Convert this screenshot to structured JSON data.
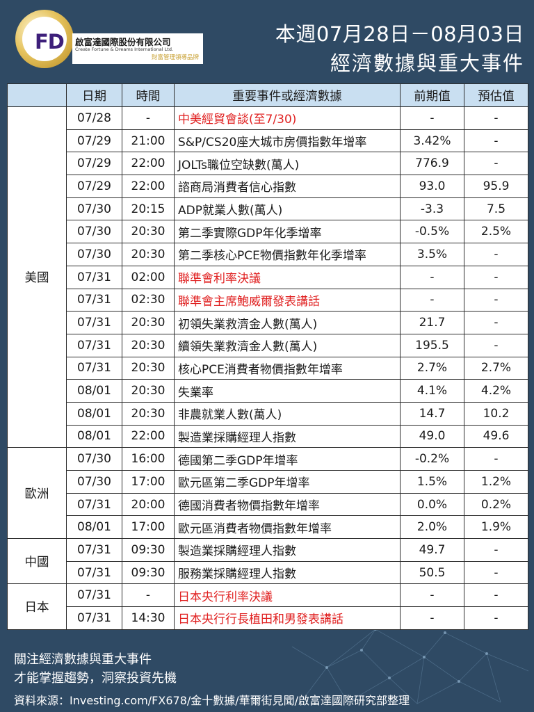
{
  "header": {
    "logo_text": "FD",
    "company_cn": "啟富達國際股份有限公司",
    "company_en": "Create Fortune & Dreams International Ltd.",
    "company_tag": "財富管理領導品牌",
    "title_line1": "本週07月28日－08月03日",
    "title_line2": "經濟數據與重大事件"
  },
  "table": {
    "headers": [
      "",
      "日期",
      "時間",
      "重要事件或經濟數據",
      "前期值",
      "預估值"
    ],
    "regions": [
      {
        "name": "美國",
        "rows": [
          {
            "date": "07/28",
            "time": "-",
            "event": "中美經貿會談(至7/30)",
            "prev": "-",
            "est": "-",
            "highlight": true
          },
          {
            "date": "07/29",
            "time": "21:00",
            "event": "S&P/CS20座大城市房價指數年增率",
            "prev": "3.42%",
            "est": "-",
            "highlight": false
          },
          {
            "date": "07/29",
            "time": "22:00",
            "event": "JOLTs職位空缺數(萬人)",
            "prev": "776.9",
            "est": "-",
            "highlight": false
          },
          {
            "date": "07/29",
            "time": "22:00",
            "event": "諮商局消費者信心指數",
            "prev": "93.0",
            "est": "95.9",
            "highlight": false
          },
          {
            "date": "07/30",
            "time": "20:15",
            "event": "ADP就業人數(萬人)",
            "prev": "-3.3",
            "est": "7.5",
            "highlight": false
          },
          {
            "date": "07/30",
            "time": "20:30",
            "event": "第二季實際GDP年化季增率",
            "prev": "-0.5%",
            "est": "2.5%",
            "highlight": false
          },
          {
            "date": "07/30",
            "time": "20:30",
            "event": "第二季核心PCE物價指數年化季增率",
            "prev": "3.5%",
            "est": "-",
            "highlight": false
          },
          {
            "date": "07/31",
            "time": "02:00",
            "event": "聯準會利率決議",
            "prev": "-",
            "est": "-",
            "highlight": true
          },
          {
            "date": "07/31",
            "time": "02:30",
            "event": "聯準會主席鮑威爾發表講話",
            "prev": "-",
            "est": "-",
            "highlight": true
          },
          {
            "date": "07/31",
            "time": "20:30",
            "event": "初領失業救濟金人數(萬人)",
            "prev": "21.7",
            "est": "-",
            "highlight": false
          },
          {
            "date": "07/31",
            "time": "20:30",
            "event": "續領失業救濟金人數(萬人)",
            "prev": "195.5",
            "est": "-",
            "highlight": false
          },
          {
            "date": "07/31",
            "time": "20:30",
            "event": "核心PCE消費者物價指數年增率",
            "prev": "2.7%",
            "est": "2.7%",
            "highlight": false
          },
          {
            "date": "08/01",
            "time": "20:30",
            "event": "失業率",
            "prev": "4.1%",
            "est": "4.2%",
            "highlight": false
          },
          {
            "date": "08/01",
            "time": "20:30",
            "event": "非農就業人數(萬人)",
            "prev": "14.7",
            "est": "10.2",
            "highlight": false
          },
          {
            "date": "08/01",
            "time": "22:00",
            "event": "製造業採購經理人指數",
            "prev": "49.0",
            "est": "49.6",
            "highlight": false
          }
        ]
      },
      {
        "name": "歐洲",
        "rows": [
          {
            "date": "07/30",
            "time": "16:00",
            "event": "德國第二季GDP年增率",
            "prev": "-0.2%",
            "est": "-",
            "highlight": false
          },
          {
            "date": "07/30",
            "time": "17:00",
            "event": "歐元區第二季GDP年增率",
            "prev": "1.5%",
            "est": "1.2%",
            "highlight": false
          },
          {
            "date": "07/31",
            "time": "20:00",
            "event": "德國消費者物價指數年增率",
            "prev": "0.0%",
            "est": "0.2%",
            "highlight": false
          },
          {
            "date": "08/01",
            "time": "17:00",
            "event": "歐元區消費者物價指數年增率",
            "prev": "2.0%",
            "est": "1.9%",
            "highlight": false
          }
        ]
      },
      {
        "name": "中國",
        "rows": [
          {
            "date": "07/31",
            "time": "09:30",
            "event": "製造業採購經理人指數",
            "prev": "49.7",
            "est": "-",
            "highlight": false
          },
          {
            "date": "07/31",
            "time": "09:30",
            "event": "服務業採購經理人指數",
            "prev": "50.5",
            "est": "-",
            "highlight": false
          }
        ]
      },
      {
        "name": "日本",
        "rows": [
          {
            "date": "07/31",
            "time": "-",
            "event": "日本央行利率決議",
            "prev": "-",
            "est": "-",
            "highlight": true
          },
          {
            "date": "07/31",
            "time": "14:30",
            "event": "日本央行行長植田和男發表講話",
            "prev": "-",
            "est": "-",
            "highlight": true
          }
        ]
      }
    ]
  },
  "footer": {
    "line1": "關注經濟數據與重大事件",
    "line2": "才能掌握趨勢，洞察投資先機",
    "source": "資料來源：Investing.com/FX678/金十數據/華爾街見聞/啟富達國際研究部整理"
  },
  "colors": {
    "background": "#2f4a64",
    "header_row": "#c9dff1",
    "highlight_text": "#e02020",
    "logo_gold": "#c8a032"
  }
}
